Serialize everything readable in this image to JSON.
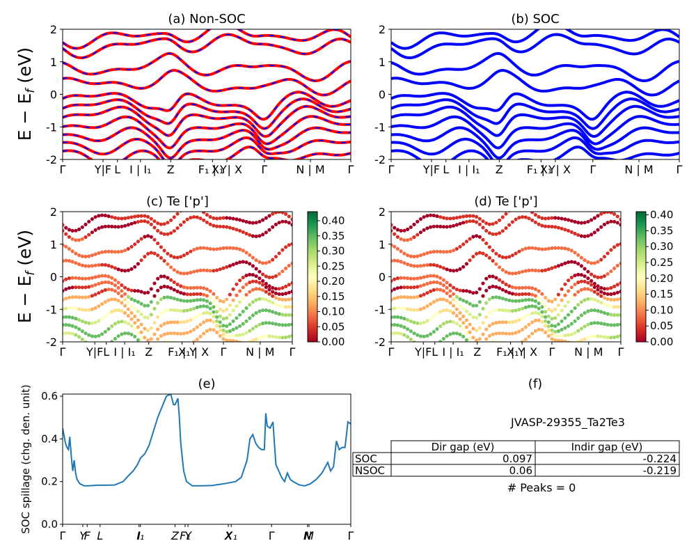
{
  "ylabel_band": "E − E",
  "ylabel_band_sub": "f",
  "ylabel_band_unit": " (eV)",
  "kpath_a": [
    "Γ",
    "Y|F",
    "L",
    "I | I₁",
    "Z",
    "F₁ | Y",
    "X₁ | X",
    "Γ",
    "N | M",
    "Γ"
  ],
  "kpath_e": [
    "Γ",
    "Y",
    "F",
    "L",
    "I",
    "I₁",
    "Z",
    "F₁",
    "Y",
    "X",
    "X₁",
    "Γ",
    "N",
    "M",
    "Γ"
  ],
  "table": {
    "material": "JVASP-29355_Ta2Te3",
    "columns": [
      "Dir gap (eV)",
      "Indir gap (eV)"
    ],
    "rows": [
      {
        "label": "SOC",
        "dir": "0.097",
        "indir": "-0.224"
      },
      {
        "label": "NSOC",
        "dir": "0.06",
        "indir": "-0.219"
      }
    ],
    "peaks": "# Peaks = 0"
  },
  "chart_data": [
    {
      "panel": "a",
      "type": "line",
      "title": "(a) Non-SOC",
      "ylabel": "E − E_f (eV)",
      "ylim": [
        -2,
        2
      ],
      "yticks": [
        -2,
        -1,
        0,
        1,
        2
      ],
      "xticks": [
        "Γ",
        "Y|F",
        "L",
        "I | I₁",
        "Z",
        "F₁ | Y",
        "X₁ | X",
        "Γ",
        "N | M",
        "Γ"
      ],
      "colors": [
        "#ff0000",
        "#0000ff"
      ],
      "bands_approx": [
        -1.9,
        -1.6,
        -1.3,
        -1.0,
        -0.7,
        -0.45,
        -0.2,
        0.3,
        0.8,
        1.5,
        1.8
      ]
    },
    {
      "panel": "b",
      "type": "line",
      "title": "(b) SOC",
      "ylim": [
        -2,
        2
      ],
      "yticks": [
        -2,
        -1,
        0,
        1,
        2
      ],
      "xticks": [
        "Γ",
        "Y|F",
        "L",
        "I | I₁",
        "Z",
        "F₁ | Y",
        "X₁ | X",
        "Γ",
        "N | M",
        "Γ"
      ],
      "colors": [
        "#0000ff"
      ],
      "bands_approx": [
        -1.9,
        -1.6,
        -1.3,
        -1.0,
        -0.7,
        -0.45,
        -0.2,
        0.3,
        0.8,
        1.5,
        1.8
      ]
    },
    {
      "panel": "c",
      "type": "scatter",
      "title": "(c)  Te ['p']",
      "ylabel": "E − E_f (eV)",
      "ylim": [
        -2,
        2
      ],
      "yticks": [
        -2,
        -1,
        0,
        1,
        2
      ],
      "xticks": [
        "Γ",
        "Y|F",
        "L",
        "I | I₁",
        "Z",
        "F₁ | Y",
        "X₁ | X",
        "Γ",
        "N | M",
        "Γ"
      ],
      "colormap": "RdYlGn",
      "colorbar_ticks": [
        "0.00",
        "0.05",
        "0.10",
        "0.15",
        "0.20",
        "0.25",
        "0.30",
        "0.35",
        "0.40"
      ],
      "colorbar_range": [
        0.0,
        0.43
      ]
    },
    {
      "panel": "d",
      "type": "scatter",
      "title": "(d) Te ['p']",
      "ylim": [
        -2,
        2
      ],
      "yticks": [
        -2,
        -1,
        0,
        1,
        2
      ],
      "xticks": [
        "Γ",
        "Y|F",
        "L",
        "I | I₁",
        "Z",
        "F₁ | Y",
        "X₁ | X",
        "Γ",
        "N | M",
        "Γ"
      ],
      "colormap": "RdYlGn",
      "colorbar_ticks": [
        "0.00",
        "0.05",
        "0.10",
        "0.15",
        "0.20",
        "0.25",
        "0.30",
        "0.35",
        "0.40"
      ],
      "colorbar_range": [
        0.0,
        0.41
      ]
    },
    {
      "panel": "e",
      "type": "line",
      "title": "(e)",
      "ylabel": "SOC spillage (chg. den. unit)",
      "ylim": [
        0.0,
        0.61
      ],
      "yticks": [
        "0.0",
        "0.2",
        "0.4",
        "0.6"
      ],
      "xticks": [
        "Γ",
        "Y",
        "F",
        "L",
        "I",
        "I₁",
        "Z",
        "F₁",
        "Y",
        "X",
        "X₁",
        "Γ",
        "N",
        "M",
        "Γ"
      ],
      "color": "#1f77b4",
      "x": [
        0,
        0.01,
        0.015,
        0.02,
        0.025,
        0.03,
        0.035,
        0.04,
        0.045,
        0.05,
        0.06,
        0.075,
        0.09,
        0.12,
        0.15,
        0.18,
        0.21,
        0.23,
        0.245,
        0.25,
        0.26,
        0.27,
        0.285,
        0.3,
        0.33,
        0.36,
        0.375,
        0.385,
        0.39,
        0.4,
        0.405,
        0.41,
        0.42,
        0.43,
        0.45,
        0.48,
        0.52,
        0.56,
        0.6,
        0.62,
        0.64,
        0.65,
        0.66,
        0.67,
        0.68,
        0.69,
        0.7,
        0.705,
        0.71,
        0.72,
        0.73,
        0.74,
        0.75,
        0.76,
        0.77,
        0.78,
        0.79,
        0.8,
        0.82,
        0.84,
        0.86,
        0.88,
        0.9,
        0.92,
        0.93,
        0.94,
        0.95,
        0.96,
        0.97,
        0.98,
        0.99,
        1.0
      ],
      "y": [
        0.45,
        0.38,
        0.36,
        0.35,
        0.41,
        0.32,
        0.25,
        0.3,
        0.24,
        0.21,
        0.19,
        0.18,
        0.18,
        0.183,
        0.183,
        0.184,
        0.2,
        0.23,
        0.25,
        0.26,
        0.28,
        0.31,
        0.33,
        0.37,
        0.5,
        0.6,
        0.61,
        0.56,
        0.56,
        0.59,
        0.5,
        0.38,
        0.25,
        0.2,
        0.18,
        0.18,
        0.182,
        0.19,
        0.2,
        0.22,
        0.3,
        0.4,
        0.42,
        0.38,
        0.36,
        0.35,
        0.35,
        0.52,
        0.46,
        0.45,
        0.48,
        0.28,
        0.25,
        0.22,
        0.2,
        0.24,
        0.21,
        0.2,
        0.185,
        0.18,
        0.19,
        0.21,
        0.24,
        0.29,
        0.25,
        0.27,
        0.39,
        0.35,
        0.36,
        0.36,
        0.48,
        0.47
      ]
    }
  ]
}
